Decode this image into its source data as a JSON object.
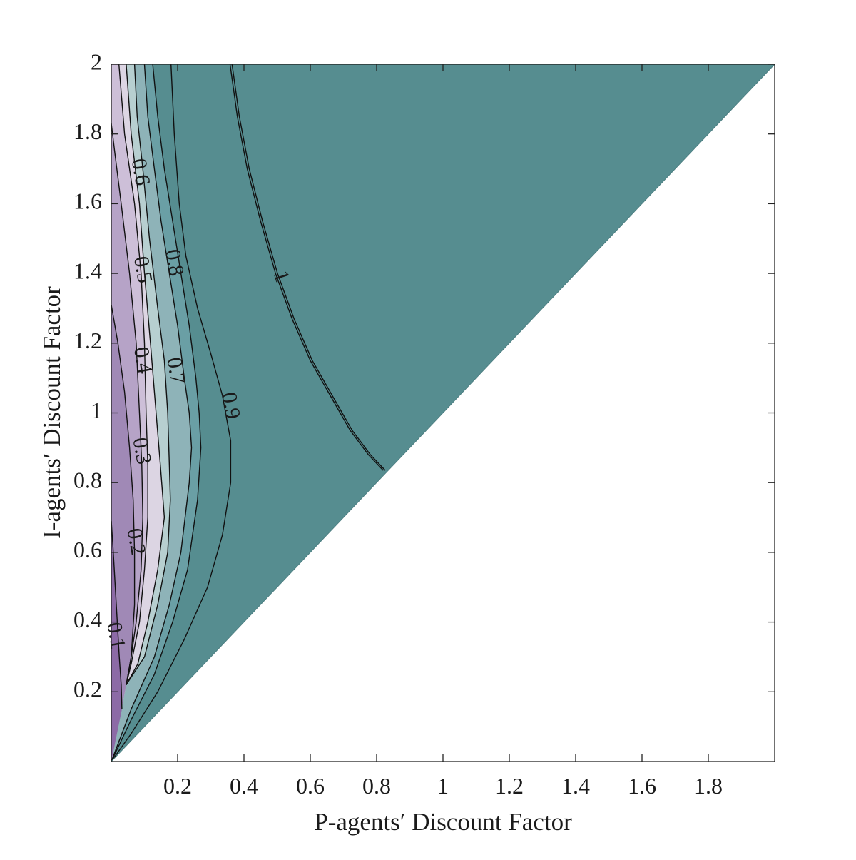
{
  "chart_data": {
    "type": "contour",
    "xlabel": "P-agents′ Discount Factor",
    "ylabel": "I-agents′ Discount Factor",
    "xlim": [
      0,
      2
    ],
    "ylim": [
      0,
      2
    ],
    "xticks": [
      "0.2",
      "0.4",
      "0.6",
      "0.8",
      "1",
      "1.2",
      "1.4",
      "1.6",
      "1.8"
    ],
    "yticks": [
      "0.2",
      "0.4",
      "0.6",
      "0.8",
      "1",
      "1.2",
      "1.4",
      "1.6",
      "1.8",
      "2"
    ],
    "domain": "upper triangle, y >= x (region below the diagonal is empty)",
    "fill_colors": [
      "#8c6aa6",
      "#a089b6",
      "#b6a3c7",
      "#cdbfd8",
      "#dcd5e3",
      "#b7cfd0",
      "#8eb3b8",
      "#6a9fa5",
      "#568d90"
    ],
    "contours": [
      {
        "level": "0.1",
        "label_x": 0.009,
        "label_y": 0.36,
        "points": [
          [
            0.0,
            0.69
          ],
          [
            0.006,
            0.6
          ],
          [
            0.012,
            0.5
          ],
          [
            0.018,
            0.4
          ],
          [
            0.024,
            0.3
          ],
          [
            0.03,
            0.22
          ],
          [
            0.032,
            0.15
          ]
        ]
      },
      {
        "level": "0.2",
        "label_x": 0.07,
        "label_y": 0.63,
        "points": [
          [
            0.0,
            1.31
          ],
          [
            0.02,
            1.2
          ],
          [
            0.04,
            1.06
          ],
          [
            0.055,
            0.9
          ],
          [
            0.066,
            0.75
          ],
          [
            0.07,
            0.6
          ],
          [
            0.07,
            0.45
          ],
          [
            0.06,
            0.3
          ],
          [
            0.045,
            0.22
          ]
        ]
      },
      {
        "level": "0.3",
        "label_x": 0.087,
        "label_y": 0.89,
        "points": [
          [
            0.0,
            1.83
          ],
          [
            0.01,
            1.75
          ],
          [
            0.03,
            1.6
          ],
          [
            0.055,
            1.4
          ],
          [
            0.075,
            1.2
          ],
          [
            0.085,
            1.0
          ],
          [
            0.092,
            0.85
          ],
          [
            0.095,
            0.7
          ],
          [
            0.09,
            0.55
          ],
          [
            0.075,
            0.4
          ],
          [
            0.06,
            0.3
          ],
          [
            0.045,
            0.22
          ]
        ]
      },
      {
        "level": "0.4",
        "label_x": 0.09,
        "label_y": 1.15,
        "points": [
          [
            0.023,
            2.0
          ],
          [
            0.04,
            1.8
          ],
          [
            0.07,
            1.6
          ],
          [
            0.09,
            1.4
          ],
          [
            0.1,
            1.2
          ],
          [
            0.105,
            1.0
          ],
          [
            0.11,
            0.85
          ],
          [
            0.11,
            0.7
          ],
          [
            0.1,
            0.55
          ],
          [
            0.085,
            0.4
          ],
          [
            0.06,
            0.28
          ],
          [
            0.045,
            0.22
          ]
        ]
      },
      {
        "level": "0.5",
        "label_x": 0.09,
        "label_y": 1.41,
        "points": [
          [
            0.045,
            2.0
          ],
          [
            0.06,
            1.8
          ],
          [
            0.085,
            1.6
          ],
          [
            0.1,
            1.4
          ],
          [
            0.118,
            1.2
          ],
          [
            0.135,
            1.0
          ],
          [
            0.148,
            0.85
          ],
          [
            0.16,
            0.7
          ],
          [
            0.14,
            0.55
          ],
          [
            0.11,
            0.4
          ],
          [
            0.08,
            0.28
          ],
          [
            0.045,
            0.22
          ]
        ]
      },
      {
        "level": "0.6",
        "label_x": 0.083,
        "label_y": 1.69,
        "points": [
          [
            0.07,
            2.0
          ],
          [
            0.078,
            1.85
          ],
          [
            0.095,
            1.7
          ],
          [
            0.115,
            1.5
          ],
          [
            0.14,
            1.3
          ],
          [
            0.16,
            1.15
          ],
          [
            0.17,
            1.0
          ],
          [
            0.175,
            0.85
          ],
          [
            0.178,
            0.75
          ],
          [
            0.17,
            0.6
          ],
          [
            0.14,
            0.45
          ],
          [
            0.1,
            0.3
          ],
          [
            0.045,
            0.22
          ]
        ]
      },
      {
        "level": "0.7",
        "label_x": 0.19,
        "label_y": 1.12,
        "points": [
          [
            0.1,
            2.0
          ],
          [
            0.11,
            1.85
          ],
          [
            0.13,
            1.7
          ],
          [
            0.15,
            1.55
          ],
          [
            0.175,
            1.4
          ],
          [
            0.2,
            1.25
          ],
          [
            0.22,
            1.1
          ],
          [
            0.235,
            1.0
          ],
          [
            0.242,
            0.9
          ],
          [
            0.235,
            0.8
          ],
          [
            0.21,
            0.6
          ],
          [
            0.175,
            0.45
          ],
          [
            0.13,
            0.3
          ],
          [
            0.06,
            0.15
          ],
          [
            0.0,
            0.0
          ]
        ]
      },
      {
        "level": "0.8",
        "label_x": 0.185,
        "label_y": 1.43,
        "points": [
          [
            0.125,
            2.0
          ],
          [
            0.14,
            1.85
          ],
          [
            0.16,
            1.7
          ],
          [
            0.185,
            1.55
          ],
          [
            0.21,
            1.4
          ],
          [
            0.235,
            1.25
          ],
          [
            0.255,
            1.1
          ],
          [
            0.265,
            1.0
          ],
          [
            0.27,
            0.9
          ],
          [
            0.26,
            0.75
          ],
          [
            0.23,
            0.55
          ],
          [
            0.185,
            0.4
          ],
          [
            0.13,
            0.25
          ],
          [
            0.06,
            0.12
          ],
          [
            0.0,
            0.0
          ]
        ]
      },
      {
        "level": "0.9",
        "label_x": 0.355,
        "label_y": 1.02,
        "points": [
          [
            0.18,
            2.0
          ],
          [
            0.19,
            1.8
          ],
          [
            0.205,
            1.6
          ],
          [
            0.225,
            1.45
          ],
          [
            0.26,
            1.3
          ],
          [
            0.3,
            1.17
          ],
          [
            0.335,
            1.05
          ],
          [
            0.36,
            0.92
          ],
          [
            0.36,
            0.8
          ],
          [
            0.335,
            0.65
          ],
          [
            0.29,
            0.5
          ],
          [
            0.22,
            0.35
          ],
          [
            0.14,
            0.2
          ],
          [
            0.06,
            0.08
          ],
          [
            0.0,
            0.0
          ]
        ]
      },
      {
        "level": "1",
        "label_x": 0.508,
        "label_y": 1.39,
        "points": [
          [
            0.358,
            2.0
          ],
          [
            0.38,
            1.85
          ],
          [
            0.41,
            1.7
          ],
          [
            0.45,
            1.55
          ],
          [
            0.495,
            1.4
          ],
          [
            0.545,
            1.27
          ],
          [
            0.6,
            1.15
          ],
          [
            0.66,
            1.05
          ],
          [
            0.72,
            0.95
          ],
          [
            0.775,
            0.88
          ],
          [
            0.82,
            0.835
          ]
        ]
      }
    ]
  }
}
